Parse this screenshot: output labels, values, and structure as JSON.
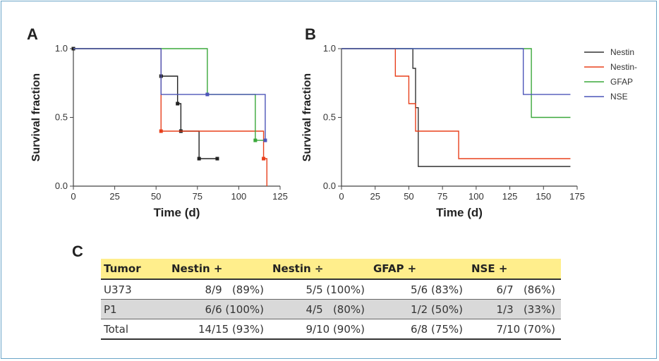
{
  "labels": {
    "panel_a": "A",
    "panel_b": "B",
    "panel_c": "C"
  },
  "chart_data": [
    {
      "type": "line",
      "subtype": "kaplan-meier",
      "panel": "A",
      "xlabel": "Time (d)",
      "ylabel": "Survival fraction",
      "xlim": [
        0,
        125
      ],
      "ylim": [
        0,
        1
      ],
      "xticks": [
        "0",
        "25",
        "50",
        "75",
        "100",
        "125"
      ],
      "yticks": [
        "0.0",
        "0.5",
        "1.0"
      ],
      "grid": false,
      "series": [
        {
          "color": "#222222",
          "steps": [
            [
              0,
              1.0
            ],
            [
              53,
              0.8
            ],
            [
              63,
              0.6
            ],
            [
              65,
              0.4
            ],
            [
              76,
              0.2
            ],
            [
              87,
              0.2
            ]
          ],
          "censor": [
            [
              0,
              1.0
            ],
            [
              53,
              0.8
            ],
            [
              63,
              0.6
            ],
            [
              65,
              0.4
            ],
            [
              76,
              0.2
            ],
            [
              87,
              0.2
            ]
          ]
        },
        {
          "color": "#e8401c",
          "steps": [
            [
              0,
              1.0
            ],
            [
              53,
              0.4
            ],
            [
              115,
              0.2
            ],
            [
              117,
              0.0
            ]
          ],
          "censor": [
            [
              53,
              0.4
            ],
            [
              115,
              0.2
            ]
          ]
        },
        {
          "color": "#3aa83a",
          "steps": [
            [
              0,
              1.0
            ],
            [
              81,
              0.667
            ],
            [
              110,
              0.333
            ],
            [
              117,
              0.333
            ]
          ],
          "censor": [
            [
              110,
              0.333
            ]
          ]
        },
        {
          "color": "#4c55b8",
          "steps": [
            [
              0,
              1.0
            ],
            [
              53,
              0.667
            ],
            [
              116,
              0.333
            ],
            [
              117,
              0.333
            ]
          ],
          "censor": [
            [
              81,
              0.667
            ],
            [
              116,
              0.333
            ]
          ]
        }
      ]
    },
    {
      "type": "line",
      "subtype": "kaplan-meier",
      "panel": "B",
      "xlabel": "Time (d)",
      "ylabel": "Survival fraction",
      "xlim": [
        0,
        175
      ],
      "ylim": [
        0,
        1
      ],
      "xticks": [
        "0",
        "25",
        "50",
        "75",
        "100",
        "125",
        "150",
        "175"
      ],
      "yticks": [
        "0.0",
        "0.5",
        "1.0"
      ],
      "grid": false,
      "legend_position": "right",
      "series": [
        {
          "name": "Nestin",
          "color": "#333333",
          "steps": [
            [
              0,
              1.0
            ],
            [
              53,
              0.857
            ],
            [
              55,
              0.571
            ],
            [
              57,
              0.143
            ],
            [
              170,
              0.143
            ]
          ]
        },
        {
          "name": "Nestin-",
          "color": "#e8401c",
          "steps": [
            [
              0,
              1.0
            ],
            [
              40,
              0.8
            ],
            [
              50,
              0.6
            ],
            [
              55,
              0.4
            ],
            [
              87,
              0.2
            ],
            [
              170,
              0.2
            ]
          ]
        },
        {
          "name": "GFAP",
          "color": "#3aa83a",
          "steps": [
            [
              0,
              1.0
            ],
            [
              141,
              0.5
            ],
            [
              170,
              0.5
            ]
          ]
        },
        {
          "name": "NSE",
          "color": "#4c55b8",
          "steps": [
            [
              0,
              1.0
            ],
            [
              135,
              0.667
            ],
            [
              170,
              0.667
            ]
          ]
        }
      ]
    },
    {
      "type": "table",
      "panel": "C",
      "columns": [
        "Tumor",
        "Nestin +",
        "Nestin ÷",
        "GFAP +",
        "NSE +"
      ],
      "rows": [
        [
          "U373",
          "8/9   (89%)",
          "5/5 (100%)",
          "5/6 (83%)",
          "6/7   (86%)"
        ],
        [
          "P1",
          "6/6 (100%)",
          "4/5   (80%)",
          "1/2 (50%)",
          "1/3   (33%)"
        ],
        [
          "Total",
          "14/15 (93%)",
          "9/10 (90%)",
          "6/8 (75%)",
          "7/10 (70%)"
        ]
      ]
    }
  ]
}
